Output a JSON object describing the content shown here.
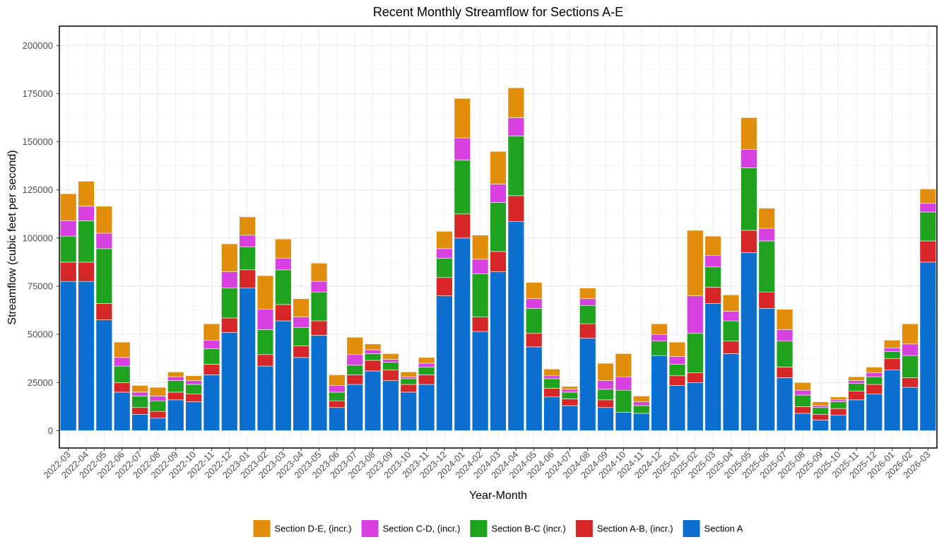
{
  "chart_data": {
    "type": "bar",
    "stacked": true,
    "title": "Recent Monthly Streamflow for Sections A-E",
    "xlabel": "Year-Month",
    "ylabel": "Streamflow (cubic feet per second)",
    "ylim": [
      -9000,
      210000
    ],
    "yticks": [
      0,
      25000,
      50000,
      75000,
      100000,
      125000,
      150000,
      175000,
      200000
    ],
    "ytick_labels": [
      "0",
      "25000",
      "50000",
      "75000",
      "100000",
      "125000",
      "150000",
      "175000",
      "200000"
    ],
    "grid": true,
    "legend_position": "bottom",
    "categories": [
      "2022-03",
      "2022-04",
      "2022-05",
      "2022-06",
      "2022-07",
      "2022-08",
      "2022-09",
      "2022-10",
      "2022-11",
      "2022-12",
      "2023-01",
      "2023-02",
      "2023-03",
      "2023-04",
      "2023-05",
      "2023-06",
      "2023-07",
      "2023-08",
      "2023-09",
      "2023-10",
      "2023-11",
      "2023-12",
      "2024-01",
      "2024-02",
      "2024-03",
      "2024-04",
      "2024-05",
      "2024-06",
      "2024-07",
      "2024-08",
      "2024-09",
      "2024-10",
      "2024-11",
      "2024-12",
      "2025-01",
      "2025-02",
      "2025-03",
      "2025-04",
      "2025-05",
      "2025-06",
      "2025-07",
      "2025-08",
      "2025-09",
      "2025-10",
      "2025-11",
      "2025-12",
      "2026-01",
      "2026-02",
      "2026-03"
    ],
    "series": [
      {
        "name": "Section A",
        "color": "#0b6fd0",
        "values": [
          77500,
          77500,
          57500,
          20000,
          8500,
          6500,
          16000,
          15000,
          29000,
          51000,
          74000,
          33500,
          57000,
          38000,
          49500,
          12000,
          24000,
          31000,
          26000,
          20000,
          24000,
          70000,
          100000,
          51500,
          82500,
          108500,
          43500,
          17500,
          13000,
          48000,
          12000,
          9500,
          9000,
          39000,
          23500,
          25000,
          66000,
          40000,
          92500,
          63500,
          27500,
          9000,
          5500,
          8000,
          16000,
          19000,
          31500,
          22500,
          87500
        ]
      },
      {
        "name": "Section A-B, (incr.)",
        "color": "#d62728",
        "values": [
          10000,
          10000,
          8500,
          5000,
          3500,
          3500,
          4000,
          4000,
          5500,
          7500,
          9500,
          6000,
          8500,
          6000,
          7500,
          3500,
          5000,
          5500,
          5500,
          4000,
          5000,
          9500,
          12500,
          7500,
          10500,
          13500,
          7000,
          4500,
          3500,
          7500,
          4000,
          0,
          0,
          0,
          5000,
          5000,
          8500,
          6500,
          11500,
          8500,
          5500,
          3500,
          3000,
          3500,
          4500,
          5000,
          6000,
          5000,
          11000
        ]
      },
      {
        "name": "Section B-C (incr.)",
        "color": "#1fa31f",
        "values": [
          13500,
          21500,
          28500,
          8500,
          6000,
          5500,
          6000,
          5000,
          8000,
          15500,
          12000,
          13000,
          18000,
          9500,
          15000,
          4500,
          5000,
          3500,
          4000,
          3000,
          4000,
          10000,
          28000,
          22500,
          25500,
          31000,
          13000,
          5000,
          3500,
          9500,
          5500,
          11500,
          4000,
          7500,
          6000,
          20500,
          10500,
          10500,
          32500,
          26500,
          13500,
          6000,
          3500,
          3500,
          4000,
          4000,
          3500,
          11500,
          15000
        ]
      },
      {
        "name": "Section C-D, (incr.)",
        "color": "#d741e0",
        "values": [
          8000,
          7500,
          8000,
          4500,
          2000,
          2500,
          2000,
          2000,
          4500,
          8500,
          6000,
          10500,
          6000,
          5500,
          5500,
          3500,
          5500,
          2000,
          1500,
          1000,
          2000,
          5000,
          11500,
          7500,
          9500,
          9500,
          5000,
          1500,
          1500,
          3500,
          4500,
          7000,
          2000,
          3500,
          4000,
          19500,
          6000,
          5000,
          9500,
          6500,
          6000,
          2500,
          1000,
          1000,
          1500,
          2000,
          2000,
          6000,
          4500
        ]
      },
      {
        "name": "Section D-E, (incr.)",
        "color": "#e08e0b",
        "values": [
          14000,
          13000,
          14000,
          8000,
          3500,
          4500,
          2500,
          2500,
          8500,
          14500,
          9500,
          17500,
          10000,
          9500,
          9500,
          5500,
          9000,
          3000,
          3000,
          2500,
          3000,
          9000,
          20500,
          12500,
          17000,
          15500,
          8500,
          3500,
          1500,
          5500,
          9000,
          12000,
          3000,
          5500,
          7500,
          34000,
          10000,
          8500,
          16500,
          10500,
          10500,
          4000,
          2000,
          1500,
          2000,
          3000,
          4000,
          10500,
          7500
        ]
      }
    ]
  }
}
